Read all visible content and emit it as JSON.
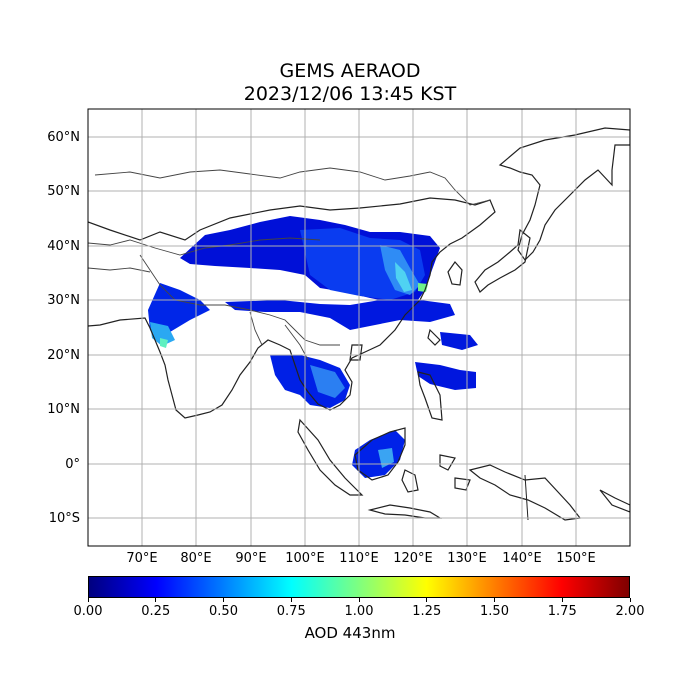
{
  "title": "GEMS AERAOD",
  "subtitle": "2023/12/06 13:45 KST",
  "colorbar": {
    "label": "AOD 443nm",
    "min": 0,
    "max": 2,
    "ticks": [
      "0.00",
      "0.25",
      "0.50",
      "0.75",
      "1.00",
      "1.25",
      "1.50",
      "1.75",
      "2.00"
    ],
    "colors": [
      "#00007f",
      "#0000ff",
      "#007fff",
      "#00ffff",
      "#7fff7f",
      "#ffff00",
      "#ff7f00",
      "#ff0000",
      "#7f0000"
    ]
  },
  "map": {
    "lon_range": [
      60,
      160
    ],
    "lat_range": [
      -15,
      65
    ],
    "lon_ticks": [
      "70°E",
      "80°E",
      "90°E",
      "100°E",
      "110°E",
      "120°E",
      "130°E",
      "140°E",
      "150°E"
    ],
    "lat_ticks": [
      "60°N",
      "50°N",
      "40°N",
      "30°N",
      "20°N",
      "10°N",
      "0°",
      "10°S"
    ],
    "grid": true
  }
}
